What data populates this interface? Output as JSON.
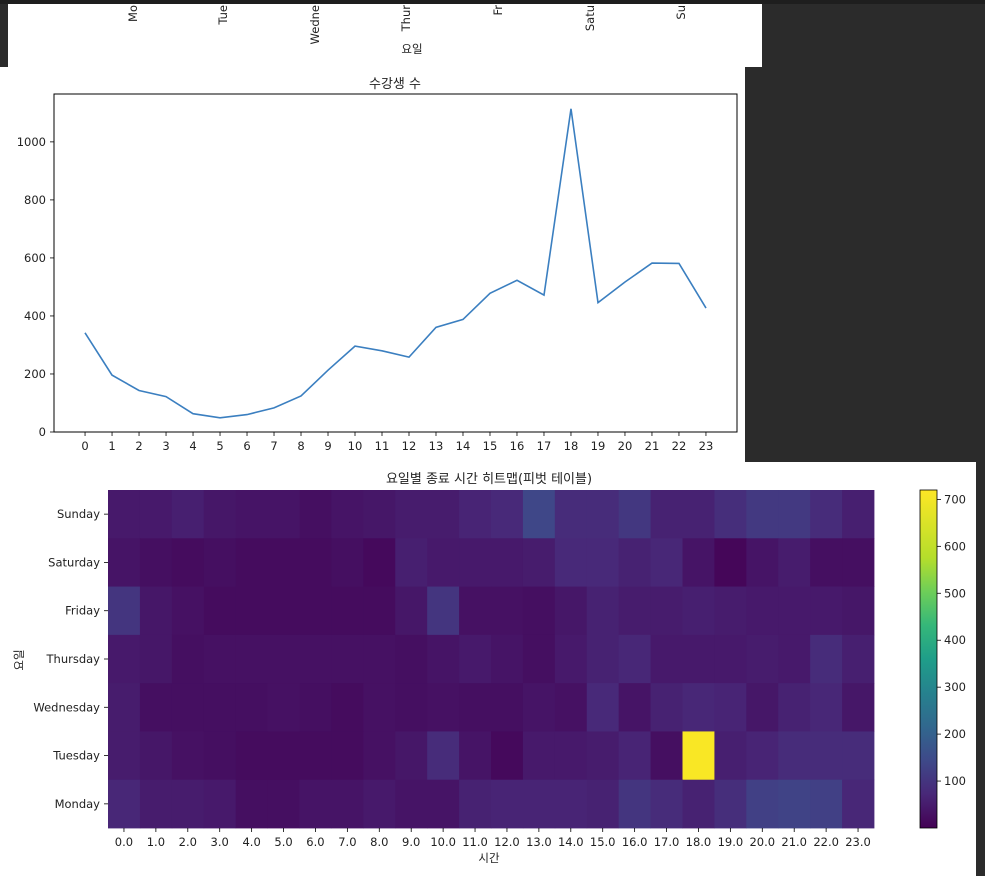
{
  "top_panel": {
    "xlabel": "요일",
    "weekday_labels": [
      "Mo",
      "Tue",
      "Wedne",
      "Thur",
      "Fr",
      "Satu",
      "Su"
    ]
  },
  "chart_data": [
    {
      "type": "line",
      "title": "수강생 수",
      "xlabel": "",
      "ylabel": "",
      "x": [
        0,
        1,
        2,
        3,
        4,
        5,
        6,
        7,
        8,
        9,
        10,
        11,
        12,
        13,
        14,
        15,
        16,
        17,
        18,
        19,
        20,
        21,
        22,
        23
      ],
      "series": [
        {
          "values": [
            342,
            196,
            143,
            122,
            63,
            49,
            60,
            83,
            124,
            213,
            296,
            280,
            258,
            361,
            388,
            478,
            523,
            472,
            1114,
            446,
            517,
            582,
            581,
            427
          ],
          "color": "#3b7fc0"
        }
      ],
      "ylim": [
        0,
        1165
      ],
      "yticks": [
        0,
        200,
        400,
        600,
        800,
        1000
      ],
      "grid": false
    },
    {
      "type": "heatmap",
      "title": "요일별 종료 시간 히트맵(피벗 테이블)",
      "xlabel": "시간",
      "ylabel": "요일",
      "x_categories": [
        "0.0",
        "1.0",
        "2.0",
        "3.0",
        "4.0",
        "5.0",
        "6.0",
        "7.0",
        "8.0",
        "9.0",
        "10.0",
        "11.0",
        "12.0",
        "13.0",
        "14.0",
        "15.0",
        "16.0",
        "17.0",
        "18.0",
        "19.0",
        "20.0",
        "21.0",
        "22.0",
        "23.0"
      ],
      "y_categories": [
        "Sunday",
        "Saturday",
        "Friday",
        "Thursday",
        "Wednesday",
        "Tuesday",
        "Monday"
      ],
      "values": [
        [
          45,
          45,
          55,
          40,
          35,
          35,
          25,
          35,
          40,
          50,
          50,
          65,
          75,
          140,
          80,
          80,
          105,
          60,
          60,
          85,
          110,
          110,
          80,
          55
        ],
        [
          35,
          25,
          20,
          25,
          20,
          20,
          20,
          25,
          15,
          55,
          45,
          45,
          45,
          50,
          75,
          75,
          60,
          70,
          35,
          10,
          35,
          50,
          25,
          25
        ],
        [
          100,
          40,
          30,
          20,
          20,
          20,
          20,
          20,
          20,
          40,
          100,
          30,
          30,
          25,
          40,
          60,
          50,
          50,
          55,
          50,
          45,
          45,
          45,
          40
        ],
        [
          45,
          40,
          25,
          30,
          30,
          30,
          30,
          30,
          30,
          25,
          35,
          45,
          35,
          25,
          45,
          60,
          70,
          45,
          45,
          45,
          50,
          45,
          80,
          55
        ],
        [
          50,
          25,
          25,
          25,
          25,
          30,
          25,
          20,
          30,
          25,
          30,
          25,
          25,
          35,
          30,
          75,
          35,
          60,
          70,
          65,
          40,
          60,
          70,
          40
        ],
        [
          50,
          40,
          30,
          25,
          20,
          20,
          20,
          20,
          30,
          40,
          80,
          35,
          15,
          45,
          45,
          50,
          65,
          25,
          712,
          55,
          65,
          80,
          80,
          80
        ],
        [
          70,
          50,
          50,
          45,
          25,
          25,
          35,
          35,
          45,
          35,
          35,
          60,
          65,
          65,
          65,
          60,
          100,
          80,
          60,
          85,
          125,
          130,
          125,
          70
        ]
      ],
      "colorbar": {
        "min": 0,
        "max": 720,
        "ticks": [
          100,
          200,
          300,
          400,
          500,
          600,
          700
        ],
        "colormap": "viridis"
      }
    }
  ]
}
